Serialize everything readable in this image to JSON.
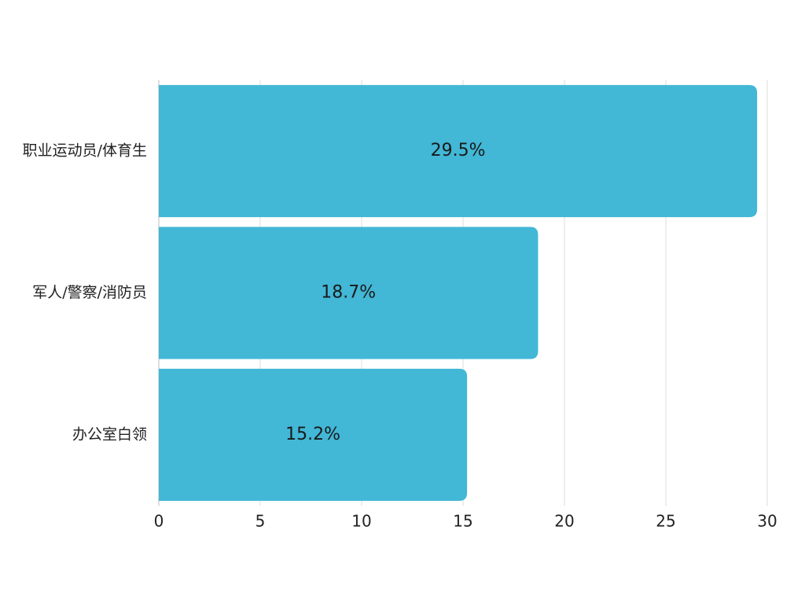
{
  "chart_data": {
    "type": "bar",
    "orientation": "horizontal",
    "categories": [
      "职业运动员/体育生",
      "军人/警察/消防员",
      "办公室白领"
    ],
    "values": [
      29.5,
      18.7,
      15.2
    ],
    "value_labels": [
      "29.5%",
      "18.7%",
      "15.2%"
    ],
    "color": "#42b7d6",
    "xlim": [
      0,
      30
    ],
    "xticks": [
      0,
      5,
      10,
      15,
      20,
      25,
      30
    ],
    "grid": true
  }
}
